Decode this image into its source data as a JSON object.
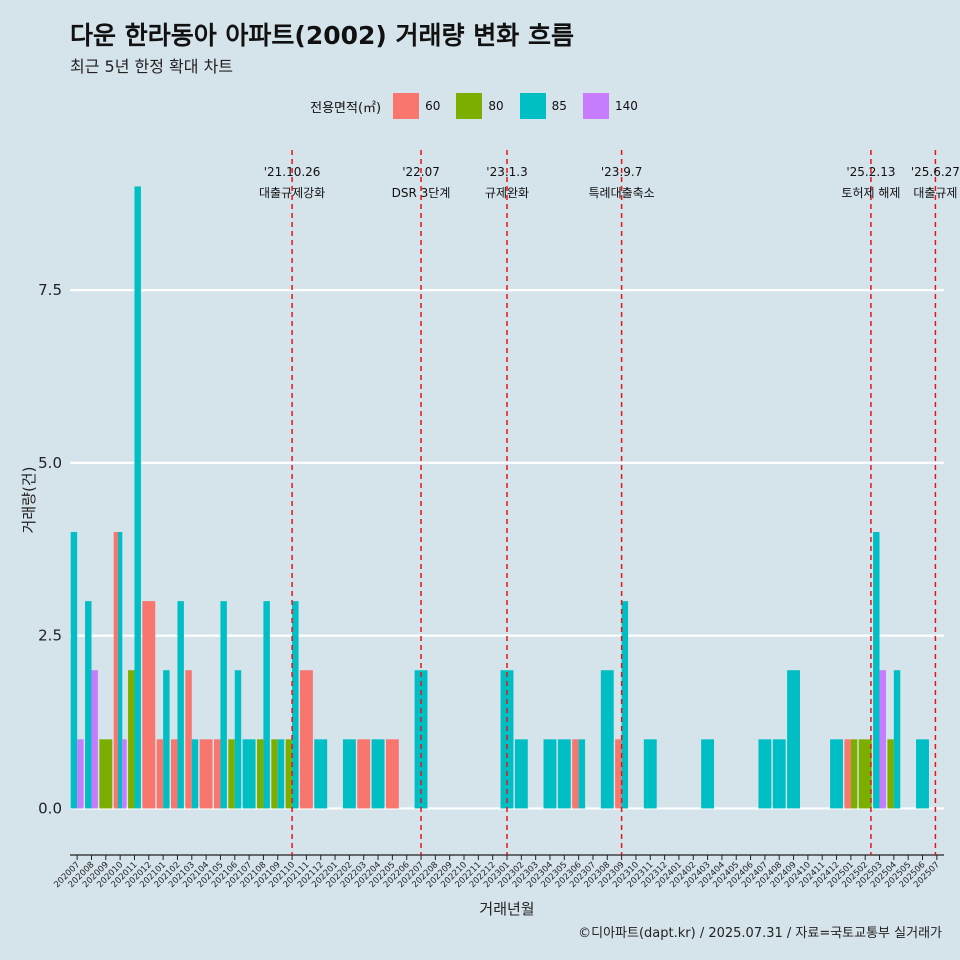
{
  "title": "다운 한라동아 아파트(2002) 거래량 변화 흐름",
  "subtitle": "최근 5년 한정 확대 차트",
  "caption": "©디아파트(dapt.kr) / 2025.07.31 / 자료=국토교통부 실거래가",
  "legend": {
    "title": "전용면적(㎡)",
    "items": [
      {
        "label": "60",
        "color": "#f8766d"
      },
      {
        "label": "80",
        "color": "#7cae00"
      },
      {
        "label": "85",
        "color": "#00bfc4"
      },
      {
        "label": "140",
        "color": "#c77cff"
      }
    ]
  },
  "chart_data": {
    "type": "bar",
    "position": "dodge",
    "xlabel": "거래년월",
    "ylabel": "거래량(건)",
    "ylim": [
      -0.5,
      9.6
    ],
    "yticks": [
      "0.0",
      "2.5",
      "5.0",
      "7.5"
    ],
    "yticks_values": [
      0,
      2.5,
      5,
      7.5
    ],
    "categories": [
      "202007",
      "202008",
      "202009",
      "202010",
      "202011",
      "202012",
      "202101",
      "202102",
      "202103",
      "202104",
      "202105",
      "202106",
      "202107",
      "202108",
      "202109",
      "202110",
      "202111",
      "202112",
      "202201",
      "202202",
      "202203",
      "202204",
      "202205",
      "202206",
      "202207",
      "202208",
      "202209",
      "202210",
      "202211",
      "202212",
      "202301",
      "202302",
      "202303",
      "202304",
      "202305",
      "202306",
      "202307",
      "202308",
      "202309",
      "202310",
      "202311",
      "202312",
      "202401",
      "202402",
      "202403",
      "202404",
      "202405",
      "202406",
      "202407",
      "202408",
      "202409",
      "202410",
      "202411",
      "202412",
      "202501",
      "202502",
      "202503",
      "202504",
      "202505",
      "202506",
      "202507"
    ],
    "data": [
      {
        "month": "202007",
        "bars": [
          {
            "size": "85",
            "value": 4
          },
          {
            "size": "140",
            "value": 1
          }
        ]
      },
      {
        "month": "202008",
        "bars": [
          {
            "size": "85",
            "value": 3
          },
          {
            "size": "140",
            "value": 2
          }
        ]
      },
      {
        "month": "202009",
        "bars": [
          {
            "size": "80",
            "value": 1
          }
        ]
      },
      {
        "month": "202010",
        "bars": [
          {
            "size": "60",
            "value": 4
          },
          {
            "size": "85",
            "value": 4
          },
          {
            "size": "140",
            "value": 1
          }
        ]
      },
      {
        "month": "202011",
        "bars": [
          {
            "size": "80",
            "value": 2
          },
          {
            "size": "85",
            "value": 9
          }
        ]
      },
      {
        "month": "202012",
        "bars": [
          {
            "size": "60",
            "value": 3
          }
        ]
      },
      {
        "month": "202101",
        "bars": [
          {
            "size": "60",
            "value": 1
          },
          {
            "size": "85",
            "value": 2
          }
        ]
      },
      {
        "month": "202102",
        "bars": [
          {
            "size": "60",
            "value": 1
          },
          {
            "size": "85",
            "value": 3
          }
        ]
      },
      {
        "month": "202103",
        "bars": [
          {
            "size": "60",
            "value": 2
          },
          {
            "size": "85",
            "value": 1
          }
        ]
      },
      {
        "month": "202104",
        "bars": [
          {
            "size": "60",
            "value": 1
          }
        ]
      },
      {
        "month": "202105",
        "bars": [
          {
            "size": "60",
            "value": 1
          },
          {
            "size": "85",
            "value": 3
          }
        ]
      },
      {
        "month": "202106",
        "bars": [
          {
            "size": "80",
            "value": 1
          },
          {
            "size": "85",
            "value": 2
          }
        ]
      },
      {
        "month": "202107",
        "bars": [
          {
            "size": "85",
            "value": 1
          }
        ]
      },
      {
        "month": "202108",
        "bars": [
          {
            "size": "80",
            "value": 1
          },
          {
            "size": "85",
            "value": 3
          }
        ]
      },
      {
        "month": "202109",
        "bars": [
          {
            "size": "80",
            "value": 1
          },
          {
            "size": "85",
            "value": 1
          }
        ]
      },
      {
        "month": "202110",
        "bars": [
          {
            "size": "80",
            "value": 1
          },
          {
            "size": "85",
            "value": 3
          }
        ]
      },
      {
        "month": "202111",
        "bars": [
          {
            "size": "60",
            "value": 2
          }
        ]
      },
      {
        "month": "202112",
        "bars": [
          {
            "size": "85",
            "value": 1
          }
        ]
      },
      {
        "month": "202201",
        "bars": []
      },
      {
        "month": "202202",
        "bars": [
          {
            "size": "85",
            "value": 1
          }
        ]
      },
      {
        "month": "202203",
        "bars": [
          {
            "size": "60",
            "value": 1
          }
        ]
      },
      {
        "month": "202204",
        "bars": [
          {
            "size": "85",
            "value": 1
          }
        ]
      },
      {
        "month": "202205",
        "bars": [
          {
            "size": "60",
            "value": 1
          }
        ]
      },
      {
        "month": "202206",
        "bars": []
      },
      {
        "month": "202207",
        "bars": [
          {
            "size": "85",
            "value": 2
          }
        ]
      },
      {
        "month": "202208",
        "bars": []
      },
      {
        "month": "202209",
        "bars": []
      },
      {
        "month": "202210",
        "bars": []
      },
      {
        "month": "202211",
        "bars": []
      },
      {
        "month": "202212",
        "bars": []
      },
      {
        "month": "202301",
        "bars": [
          {
            "size": "85",
            "value": 2
          }
        ]
      },
      {
        "month": "202302",
        "bars": [
          {
            "size": "85",
            "value": 1
          }
        ]
      },
      {
        "month": "202303",
        "bars": []
      },
      {
        "month": "202304",
        "bars": [
          {
            "size": "85",
            "value": 1
          }
        ]
      },
      {
        "month": "202305",
        "bars": [
          {
            "size": "85",
            "value": 1
          }
        ]
      },
      {
        "month": "202306",
        "bars": [
          {
            "size": "60",
            "value": 1
          },
          {
            "size": "85",
            "value": 1
          }
        ]
      },
      {
        "month": "202307",
        "bars": []
      },
      {
        "month": "202308",
        "bars": [
          {
            "size": "85",
            "value": 2
          }
        ]
      },
      {
        "month": "202309",
        "bars": [
          {
            "size": "60",
            "value": 1
          },
          {
            "size": "85",
            "value": 3
          }
        ]
      },
      {
        "month": "202310",
        "bars": []
      },
      {
        "month": "202311",
        "bars": [
          {
            "size": "85",
            "value": 1
          }
        ]
      },
      {
        "month": "202312",
        "bars": []
      },
      {
        "month": "202401",
        "bars": []
      },
      {
        "month": "202402",
        "bars": []
      },
      {
        "month": "202403",
        "bars": [
          {
            "size": "85",
            "value": 1
          }
        ]
      },
      {
        "month": "202404",
        "bars": []
      },
      {
        "month": "202405",
        "bars": []
      },
      {
        "month": "202406",
        "bars": []
      },
      {
        "month": "202407",
        "bars": [
          {
            "size": "85",
            "value": 1
          }
        ]
      },
      {
        "month": "202408",
        "bars": [
          {
            "size": "85",
            "value": 1
          }
        ]
      },
      {
        "month": "202409",
        "bars": [
          {
            "size": "85",
            "value": 2
          }
        ]
      },
      {
        "month": "202410",
        "bars": []
      },
      {
        "month": "202411",
        "bars": []
      },
      {
        "month": "202412",
        "bars": [
          {
            "size": "85",
            "value": 1
          }
        ]
      },
      {
        "month": "202501",
        "bars": [
          {
            "size": "60",
            "value": 1
          },
          {
            "size": "80",
            "value": 1
          }
        ]
      },
      {
        "month": "202502",
        "bars": [
          {
            "size": "80",
            "value": 1
          }
        ]
      },
      {
        "month": "202503",
        "bars": [
          {
            "size": "85",
            "value": 4
          },
          {
            "size": "140",
            "value": 2
          }
        ]
      },
      {
        "month": "202504",
        "bars": [
          {
            "size": "80",
            "value": 1
          },
          {
            "size": "85",
            "value": 2
          }
        ]
      },
      {
        "month": "202505",
        "bars": []
      },
      {
        "month": "202506",
        "bars": [
          {
            "size": "85",
            "value": 1
          }
        ]
      },
      {
        "month": "202507",
        "bars": []
      }
    ],
    "events": [
      {
        "month": "202110",
        "offset": 0.0,
        "date": "'21.10.26",
        "label": "대출규제강화"
      },
      {
        "month": "202207",
        "offset": 0.0,
        "date": "'22.07",
        "label": "DSR 3단계"
      },
      {
        "month": "202301",
        "offset": 0.0,
        "date": "'23.1.3",
        "label": "규제완화"
      },
      {
        "month": "202309",
        "offset": 0.0,
        "date": "'23.9.7",
        "label": "특례대출축소"
      },
      {
        "month": "202502",
        "offset": 0.4,
        "date": "'25.2.13",
        "label": "토허제 해제"
      },
      {
        "month": "202506",
        "offset": 0.9,
        "date": "'25.6.27",
        "label": "대출규제"
      }
    ]
  }
}
